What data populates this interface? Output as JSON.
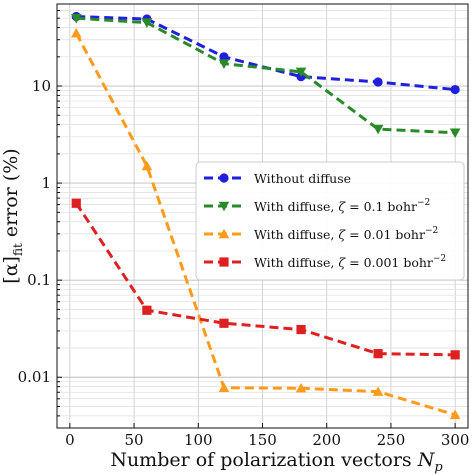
{
  "chart_data": {
    "type": "line",
    "xlabel": "Number of polarization vectors N_p",
    "xlabel_parts": {
      "main": "Number of polarization vectors ",
      "var": "N",
      "sub": "p"
    },
    "ylabel": "[α]_fit error (%)",
    "ylabel_parts": {
      "main": "[α]",
      "sub": "fit",
      "rest": " error (%)"
    },
    "x_ticks": [
      0,
      50,
      100,
      150,
      200,
      250,
      300
    ],
    "y_ticks": [
      {
        "value": 0.01,
        "label": "0.01"
      },
      {
        "value": 0.1,
        "label": "0.1"
      },
      {
        "value": 1,
        "label": "1"
      },
      {
        "value": 10,
        "label": "10"
      }
    ],
    "xlim": [
      -10,
      310
    ],
    "ylim": [
      0.003,
      70
    ],
    "yscale": "log",
    "grid": "major and minor",
    "legend_position": "center-right",
    "series": [
      {
        "name": "Without diffuse",
        "color": "#1f1fdd",
        "marker": "circle",
        "x": [
          5,
          60,
          120,
          180,
          240,
          300
        ],
        "y": [
          52,
          49,
          20,
          12.5,
          11,
          9.2
        ]
      },
      {
        "name": "With diffuse, ζ = 0.1 bohr⁻²",
        "legend_parts": {
          "pre": "With diffuse, ",
          "zeta": "ζ",
          "mid": " = 0.1 bohr",
          "sup": "−2"
        },
        "color": "#2a8a2a",
        "marker": "triangle-down",
        "x": [
          5,
          60,
          120,
          180,
          240,
          300
        ],
        "y": [
          50,
          45,
          17,
          14,
          3.6,
          3.3
        ]
      },
      {
        "name": "With diffuse, ζ = 0.01 bohr⁻²",
        "legend_parts": {
          "pre": "With diffuse, ",
          "zeta": "ζ",
          "mid": " = 0.01 bohr",
          "sup": "−2"
        },
        "color": "#ff9a1a",
        "marker": "triangle-up",
        "x": [
          5,
          60,
          120,
          180,
          240,
          300
        ],
        "y": [
          35,
          1.5,
          0.0078,
          0.0077,
          0.0071,
          0.0041
        ]
      },
      {
        "name": "With diffuse, ζ = 0.001 bohr⁻²",
        "legend_parts": {
          "pre": "With diffuse, ",
          "zeta": "ζ",
          "mid": " = 0.001 bohr",
          "sup": "−2"
        },
        "color": "#dd2020",
        "marker": "square",
        "x": [
          5,
          60,
          120,
          180,
          240,
          300
        ],
        "y": [
          0.62,
          0.049,
          0.036,
          0.031,
          0.0175,
          0.017
        ]
      }
    ]
  }
}
